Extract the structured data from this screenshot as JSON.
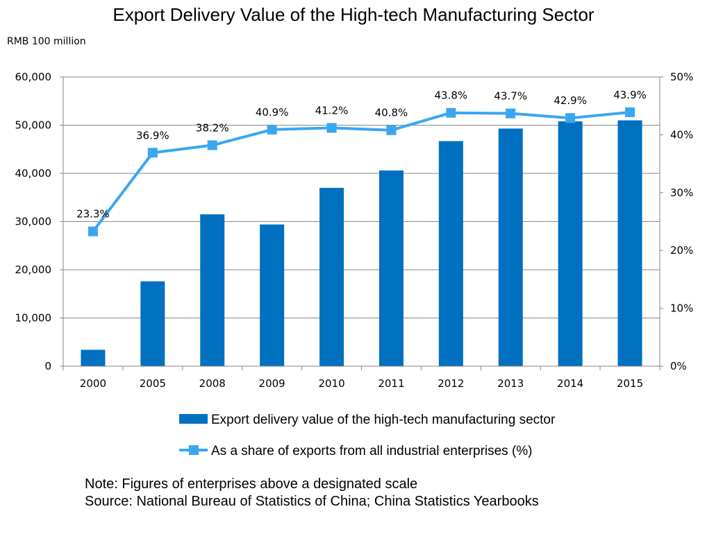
{
  "title": "Export Delivery Value of the High-tech Manufacturing Sector",
  "unit_label": "RMB 100 million",
  "notes": {
    "note": "Note: Figures of enterprises above a designated scale",
    "source": "Source: National Bureau of Statistics of China; China Statistics Yearbooks"
  },
  "colors": {
    "bar": "#0070c0",
    "line": "#3aa6f0",
    "grid": "#868686",
    "axis": "#868686"
  },
  "chart_data": {
    "type": "bar",
    "categories": [
      "2000",
      "2005",
      "2008",
      "2009",
      "2010",
      "2011",
      "2012",
      "2013",
      "2014",
      "2015"
    ],
    "series": [
      {
        "name": "Export delivery value of the high-tech manufacturing sector",
        "type": "bar",
        "axis": "left",
        "values": [
          3400,
          17600,
          31500,
          29400,
          37000,
          40600,
          46700,
          49300,
          50800,
          51000
        ]
      },
      {
        "name": "As a share of exports from all industrial enterprises (%)",
        "type": "line",
        "axis": "right",
        "values": [
          23.3,
          36.9,
          38.2,
          40.9,
          41.2,
          40.8,
          43.8,
          43.7,
          42.9,
          43.9
        ],
        "labels": [
          "23.3%",
          "36.9%",
          "38.2%",
          "40.9%",
          "41.2%",
          "40.8%",
          "43.8%",
          "43.7%",
          "42.9%",
          "43.9%"
        ]
      }
    ],
    "left_axis": {
      "ylim": [
        0,
        60000
      ],
      "ticks": [
        "0",
        "10,000",
        "20,000",
        "30,000",
        "40,000",
        "50,000",
        "60,000"
      ]
    },
    "right_axis": {
      "ylim": [
        0,
        50
      ],
      "ticks": [
        "0%",
        "10%",
        "20%",
        "30%",
        "40%",
        "50%"
      ]
    },
    "grid": true,
    "legend_position": "bottom"
  }
}
